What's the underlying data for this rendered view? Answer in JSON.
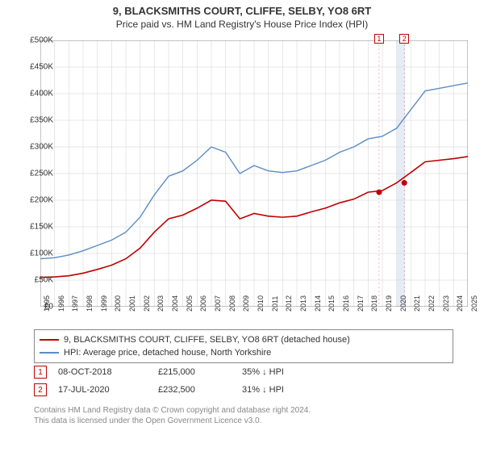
{
  "title": {
    "main": "9, BLACKSMITHS COURT, CLIFFE, SELBY, YO8 6RT",
    "sub": "Price paid vs. HM Land Registry's House Price Index (HPI)"
  },
  "chart": {
    "type": "line",
    "background_color": "#ffffff",
    "grid_color": "#d0d0d0",
    "axis_color": "#888888",
    "xlim": [
      1995,
      2025
    ],
    "ylim": [
      0,
      500000
    ],
    "ytick_step": 50000,
    "yticks": [
      "£0",
      "£50K",
      "£100K",
      "£150K",
      "£200K",
      "£250K",
      "£300K",
      "£350K",
      "£400K",
      "£450K",
      "£500K"
    ],
    "xticks": [
      1995,
      1996,
      1997,
      1998,
      1999,
      2000,
      2001,
      2002,
      2003,
      2004,
      2005,
      2006,
      2007,
      2008,
      2009,
      2010,
      2011,
      2012,
      2013,
      2014,
      2015,
      2016,
      2017,
      2018,
      2019,
      2020,
      2021,
      2022,
      2023,
      2024,
      2025
    ],
    "highlight_band": {
      "x_start": 2020.0,
      "x_end": 2020.6,
      "color": "#e6ecf5"
    },
    "series": [
      {
        "name": "hpi",
        "label": "HPI: Average price, detached house, North Yorkshire",
        "color": "#5b8cc6",
        "line_width": 1.4,
        "points": [
          [
            1995,
            90000
          ],
          [
            1996,
            92000
          ],
          [
            1997,
            97000
          ],
          [
            1998,
            105000
          ],
          [
            1999,
            115000
          ],
          [
            2000,
            125000
          ],
          [
            2001,
            140000
          ],
          [
            2002,
            168000
          ],
          [
            2003,
            210000
          ],
          [
            2004,
            245000
          ],
          [
            2005,
            255000
          ],
          [
            2006,
            275000
          ],
          [
            2007,
            300000
          ],
          [
            2008,
            290000
          ],
          [
            2009,
            250000
          ],
          [
            2010,
            265000
          ],
          [
            2011,
            255000
          ],
          [
            2012,
            252000
          ],
          [
            2013,
            255000
          ],
          [
            2014,
            265000
          ],
          [
            2015,
            275000
          ],
          [
            2016,
            290000
          ],
          [
            2017,
            300000
          ],
          [
            2018,
            315000
          ],
          [
            2019,
            320000
          ],
          [
            2020,
            335000
          ],
          [
            2021,
            370000
          ],
          [
            2022,
            405000
          ],
          [
            2023,
            410000
          ],
          [
            2024,
            415000
          ],
          [
            2025,
            420000
          ]
        ]
      },
      {
        "name": "price-paid",
        "label": "9, BLACKSMITHS COURT, CLIFFE, SELBY, YO8 6RT (detached house)",
        "color": "#c00000",
        "line_width": 1.6,
        "points": [
          [
            1995,
            55000
          ],
          [
            1996,
            56000
          ],
          [
            1997,
            58000
          ],
          [
            1998,
            63000
          ],
          [
            1999,
            70000
          ],
          [
            2000,
            78000
          ],
          [
            2001,
            90000
          ],
          [
            2002,
            110000
          ],
          [
            2003,
            140000
          ],
          [
            2004,
            165000
          ],
          [
            2005,
            172000
          ],
          [
            2006,
            185000
          ],
          [
            2007,
            200000
          ],
          [
            2008,
            198000
          ],
          [
            2009,
            165000
          ],
          [
            2010,
            175000
          ],
          [
            2011,
            170000
          ],
          [
            2012,
            168000
          ],
          [
            2013,
            170000
          ],
          [
            2014,
            178000
          ],
          [
            2015,
            185000
          ],
          [
            2016,
            195000
          ],
          [
            2017,
            202000
          ],
          [
            2018,
            215000
          ],
          [
            2019,
            218000
          ],
          [
            2020,
            232500
          ],
          [
            2021,
            252000
          ],
          [
            2022,
            272000
          ],
          [
            2023,
            275000
          ],
          [
            2024,
            278000
          ],
          [
            2025,
            282000
          ]
        ]
      }
    ],
    "sale_markers": [
      {
        "id": "1",
        "x": 2018.77,
        "y": 215000,
        "color": "#c00000"
      },
      {
        "id": "2",
        "x": 2020.54,
        "y": 232500,
        "color": "#c00000"
      }
    ],
    "marker_label_y_top": -8
  },
  "legend": {
    "rows": [
      {
        "color": "#c00000",
        "label": "9, BLACKSMITHS COURT, CLIFFE, SELBY, YO8 6RT (detached house)"
      },
      {
        "color": "#5b8cc6",
        "label": "HPI: Average price, detached house, North Yorkshire"
      }
    ]
  },
  "sales": [
    {
      "badge": "1",
      "badge_color": "#c00000",
      "date": "08-OCT-2018",
      "price": "£215,000",
      "diff": "35% ↓ HPI"
    },
    {
      "badge": "2",
      "badge_color": "#c00000",
      "date": "17-JUL-2020",
      "price": "£232,500",
      "diff": "31% ↓ HPI"
    }
  ],
  "footer": {
    "line1": "Contains HM Land Registry data © Crown copyright and database right 2024.",
    "line2": "This data is licensed under the Open Government Licence v3.0."
  }
}
